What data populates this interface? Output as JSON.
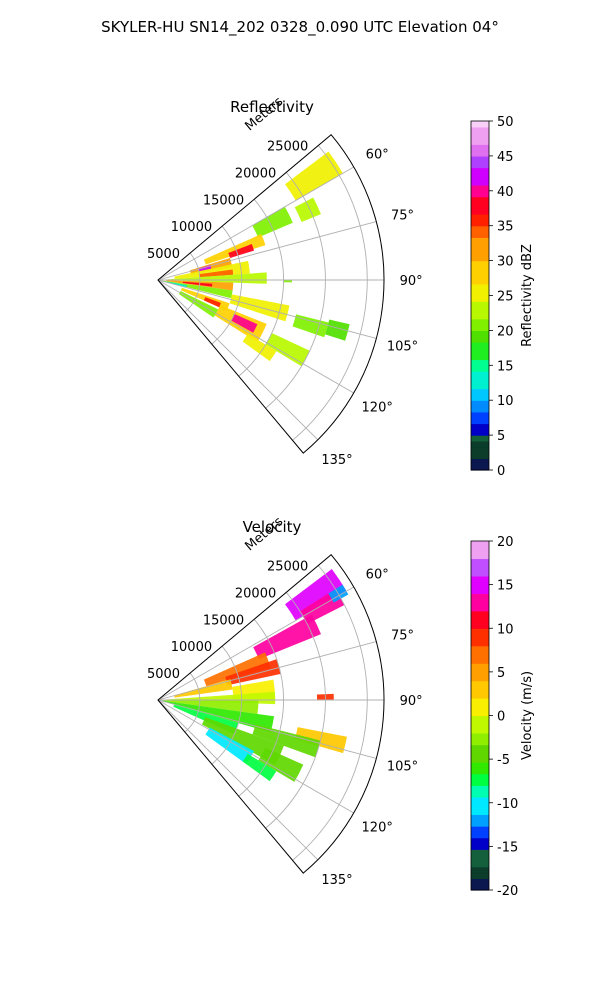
{
  "figure_title": "SKYLER-HU  SN14_202  0328_0.090 UTC Elevation 04°",
  "chart_data": [
    {
      "type": "heatmap",
      "projection": "polar-sector",
      "title": "Reflectivity",
      "range_label": "Meters",
      "range_ticks": [
        5000,
        10000,
        15000,
        20000,
        25000
      ],
      "range_tick_labels": [
        "5000",
        "10000",
        "15000",
        "20000",
        "25000"
      ],
      "range_max": 27000,
      "azimuth_range_deg": [
        50,
        140
      ],
      "azimuth_ticks": [
        60,
        75,
        90,
        105,
        120,
        135
      ],
      "azimuth_tick_labels": [
        "60°",
        "75°",
        "90°",
        "105°",
        "120°",
        "135°"
      ],
      "grid": true,
      "colorbar": {
        "label": "Reflectivity dBZ",
        "min": 0,
        "max": 50,
        "ticks": [
          0,
          5,
          10,
          15,
          20,
          25,
          30,
          35,
          40,
          45,
          50
        ],
        "tick_labels": [
          "0",
          "5",
          "10",
          "15",
          "20",
          "25",
          "30",
          "35",
          "40",
          "45",
          "50"
        ]
      },
      "echo_regions": [
        {
          "az": [
            53,
            60
          ],
          "range": [
            19000,
            25500
          ],
          "value": 24
        },
        {
          "az": [
            60,
            67
          ],
          "range": [
            13000,
            17500
          ],
          "value": 21
        },
        {
          "az": [
            62,
            68
          ],
          "range": [
            18500,
            21000
          ],
          "value": 22
        },
        {
          "az": [
            66,
            72
          ],
          "range": [
            6000,
            13500
          ],
          "value": 28
        },
        {
          "az": [
            69,
            73
          ],
          "range": [
            9000,
            12000
          ],
          "value": 37
        },
        {
          "az": [
            73,
            80
          ],
          "range": [
            4000,
            9000
          ],
          "value": 30
        },
        {
          "az": [
            74,
            78
          ],
          "range": [
            5000,
            6500
          ],
          "value": 42
        },
        {
          "az": [
            78,
            86
          ],
          "range": [
            2000,
            11000
          ],
          "value": 26
        },
        {
          "az": [
            82,
            86
          ],
          "range": [
            5000,
            9000
          ],
          "value": 33
        },
        {
          "az": [
            86,
            92
          ],
          "range": [
            500,
            13000
          ],
          "value": 22
        },
        {
          "az": [
            90,
            91
          ],
          "range": [
            15000,
            16000
          ],
          "value": 20
        },
        {
          "az": [
            92,
            98
          ],
          "range": [
            1000,
            9000
          ],
          "value": 30
        },
        {
          "az": [
            94,
            97
          ],
          "range": [
            3000,
            6500
          ],
          "value": 37
        },
        {
          "az": [
            98,
            104
          ],
          "range": [
            500,
            9000
          ],
          "value": 20
        },
        {
          "az": [
            100,
            104
          ],
          "range": [
            1000,
            3500
          ],
          "value": 13
        },
        {
          "az": [
            101,
            108
          ],
          "range": [
            9000,
            16000
          ],
          "value": 25
        },
        {
          "az": [
            104,
            109
          ],
          "range": [
            17000,
            21000
          ],
          "value": 21
        },
        {
          "az": [
            103,
            108
          ],
          "range": [
            21000,
            23500
          ],
          "value": 19
        },
        {
          "az": [
            108,
            114
          ],
          "range": [
            3000,
            9000
          ],
          "value": 27
        },
        {
          "az": [
            110,
            114
          ],
          "range": [
            6000,
            8000
          ],
          "value": 35
        },
        {
          "az": [
            112,
            122
          ],
          "range": [
            8000,
            14000
          ],
          "value": 29
        },
        {
          "az": [
            114,
            119
          ],
          "range": [
            10000,
            13000
          ],
          "value": 40
        },
        {
          "az": [
            115,
            121
          ],
          "range": [
            15000,
            20000
          ],
          "value": 23
        },
        {
          "az": [
            121,
            126
          ],
          "range": [
            12500,
            16500
          ],
          "value": 26
        },
        {
          "az": [
            116,
            124
          ],
          "range": [
            3000,
            8000
          ],
          "value": 21
        }
      ]
    },
    {
      "type": "heatmap",
      "projection": "polar-sector",
      "title": "Velocity",
      "range_label": "Meters",
      "range_ticks": [
        5000,
        10000,
        15000,
        20000,
        25000
      ],
      "range_tick_labels": [
        "5000",
        "10000",
        "15000",
        "20000",
        "25000"
      ],
      "range_max": 27000,
      "azimuth_range_deg": [
        50,
        140
      ],
      "azimuth_ticks": [
        60,
        75,
        90,
        105,
        120,
        135
      ],
      "azimuth_tick_labels": [
        "60°",
        "75°",
        "90°",
        "105°",
        "120°",
        "135°"
      ],
      "grid": true,
      "colorbar": {
        "label": "Velocity (m/s)",
        "min": -20,
        "max": 20,
        "ticks": [
          -20,
          -15,
          -10,
          -5,
          0,
          5,
          10,
          15,
          20
        ],
        "tick_labels": [
          "-20",
          "-15",
          "-10",
          "-5",
          "0",
          "5",
          "10",
          "15",
          "20"
        ]
      },
      "echo_regions": [
        {
          "az": [
            53,
            60
          ],
          "range": [
            19000,
            26000
          ],
          "value": 14
        },
        {
          "az": [
            58,
            63
          ],
          "range": [
            20000,
            25000
          ],
          "value": 12
        },
        {
          "az": [
            58,
            61
          ],
          "range": [
            24000,
            26000
          ],
          "value": -12
        },
        {
          "az": [
            61,
            68
          ],
          "range": [
            13000,
            21000
          ],
          "value": 13
        },
        {
          "az": [
            66,
            74
          ],
          "range": [
            6000,
            14000
          ],
          "value": 6
        },
        {
          "az": [
            71,
            78
          ],
          "range": [
            8500,
            15000
          ],
          "value": 9
        },
        {
          "az": [
            74,
            82
          ],
          "range": [
            2000,
            9000
          ],
          "value": 2
        },
        {
          "az": [
            80,
            90
          ],
          "range": [
            9000,
            14000
          ],
          "value": 1
        },
        {
          "az": [
            86,
            92
          ],
          "range": [
            500,
            14000
          ],
          "value": -1
        },
        {
          "az": [
            88,
            90
          ],
          "range": [
            19000,
            21000
          ],
          "value": 8
        },
        {
          "az": [
            90,
            98
          ],
          "range": [
            500,
            12000
          ],
          "value": -3
        },
        {
          "az": [
            98,
            106
          ],
          "range": [
            500,
            14000
          ],
          "value": -6
        },
        {
          "az": [
            101,
            106
          ],
          "range": [
            17000,
            23000
          ],
          "value": 3
        },
        {
          "az": [
            104,
            110
          ],
          "range": [
            12000,
            20000
          ],
          "value": -4
        },
        {
          "az": [
            106,
            114
          ],
          "range": [
            2000,
            10000
          ],
          "value": -8
        },
        {
          "az": [
            110,
            119
          ],
          "range": [
            6000,
            16000
          ],
          "value": -5
        },
        {
          "az": [
            114,
            121
          ],
          "range": [
            14000,
            19000
          ],
          "value": -4
        },
        {
          "az": [
            118,
            126
          ],
          "range": [
            7000,
            13000
          ],
          "value": -11
        },
        {
          "az": [
            121,
            126
          ],
          "range": [
            12500,
            16500
          ],
          "value": -7
        }
      ]
    }
  ]
}
